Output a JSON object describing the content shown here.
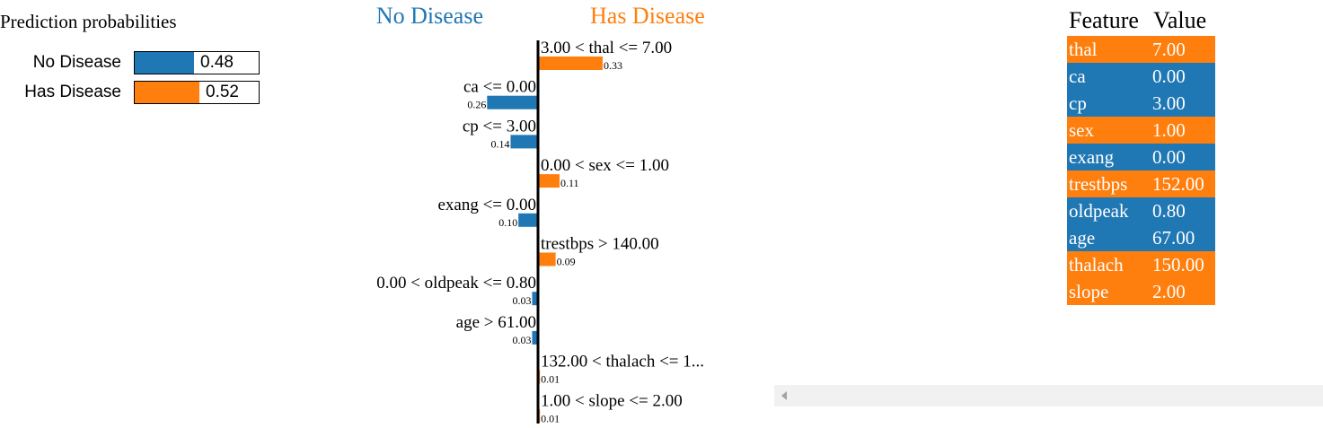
{
  "prediction": {
    "title": "Prediction probabilities",
    "classes": [
      {
        "label": "No Disease",
        "value": "0.48",
        "prob": 0.48,
        "color": "#1f77b4"
      },
      {
        "label": "Has Disease",
        "value": "0.52",
        "prob": 0.52,
        "color": "#ff7f0e"
      }
    ]
  },
  "chart_data": {
    "type": "bar",
    "orientation": "horizontal-diverging",
    "left_class": "No Disease",
    "right_class": "Has Disease",
    "left_color": "#1f77b4",
    "right_color": "#ff7f0e",
    "bars": [
      {
        "label": "3.00 < thal <= 7.00",
        "value": 0.33,
        "value_label": "0.33",
        "side": "right"
      },
      {
        "label": "ca <= 0.00",
        "value": 0.26,
        "value_label": "0.26",
        "side": "left"
      },
      {
        "label": "cp <= 3.00",
        "value": 0.14,
        "value_label": "0.14",
        "side": "left"
      },
      {
        "label": "0.00 < sex <= 1.00",
        "value": 0.11,
        "value_label": "0.11",
        "side": "right"
      },
      {
        "label": "exang <= 0.00",
        "value": 0.1,
        "value_label": "0.10",
        "side": "left"
      },
      {
        "label": "trestbps > 140.00",
        "value": 0.09,
        "value_label": "0.09",
        "side": "right"
      },
      {
        "label": "0.00 < oldpeak <= 0.80",
        "value": 0.03,
        "value_label": "0.03",
        "side": "left"
      },
      {
        "label": "age > 61.00",
        "value": 0.03,
        "value_label": "0.03",
        "side": "left"
      },
      {
        "label": "132.00 < thalach <= 1...",
        "value": 0.01,
        "value_label": "0.01",
        "side": "right"
      },
      {
        "label": "1.00 < slope <= 2.00",
        "value": 0.01,
        "value_label": "0.01",
        "side": "right"
      }
    ]
  },
  "feature_table": {
    "headers": [
      "Feature",
      "Value"
    ],
    "rows": [
      {
        "feature": "thal",
        "value": "7.00",
        "color": "#ff7f0e"
      },
      {
        "feature": "ca",
        "value": "0.00",
        "color": "#1f77b4"
      },
      {
        "feature": "cp",
        "value": "3.00",
        "color": "#1f77b4"
      },
      {
        "feature": "sex",
        "value": "1.00",
        "color": "#ff7f0e"
      },
      {
        "feature": "exang",
        "value": "0.00",
        "color": "#1f77b4"
      },
      {
        "feature": "trestbps",
        "value": "152.00",
        "color": "#ff7f0e"
      },
      {
        "feature": "oldpeak",
        "value": "0.80",
        "color": "#1f77b4"
      },
      {
        "feature": "age",
        "value": "67.00",
        "color": "#1f77b4"
      },
      {
        "feature": "thalach",
        "value": "150.00",
        "color": "#ff7f0e"
      },
      {
        "feature": "slope",
        "value": "2.00",
        "color": "#ff7f0e"
      }
    ]
  }
}
